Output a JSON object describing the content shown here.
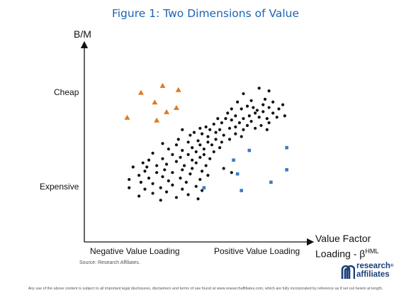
{
  "title": "Figure 1: Two Dimensions of Value",
  "source": "Source: Research Affiliates.",
  "disclaimer": "Any use of the above content is subject to all important legal disclosures, disclaimers and terms of use found at www.researchaffiliates.com, which are fully incorporated by reference as if set out herein at length.",
  "logo": {
    "line1": "research",
    "line2": "affiliates",
    "reg": "®"
  },
  "chart_data": {
    "type": "scatter",
    "title": "Figure 1: Two Dimensions of Value",
    "ylabel": "B/M",
    "xlabel": "Value Factor Loading - β",
    "xlabel_sup": "HML",
    "y_tick_labels": [
      "Cheap",
      "Expensive"
    ],
    "x_tick_labels": [
      "Negative Value Loading",
      "Positive Value Loading"
    ],
    "xlim": [
      0,
      100
    ],
    "ylim": [
      0,
      100
    ],
    "grid": false,
    "legend": "none",
    "colors": {
      "dots": "#111111",
      "triangles": "#e07a1f",
      "squares": "#3a7cc4",
      "title": "#1b63b7",
      "logo": "#1b3f78"
    },
    "series": [
      {
        "marker": "circle",
        "points": [
          [
            74,
            85
          ],
          [
            79,
            83
          ],
          [
            66,
            81
          ],
          [
            77,
            77
          ],
          [
            70,
            76
          ],
          [
            81,
            75
          ],
          [
            63,
            75
          ],
          [
            76,
            73
          ],
          [
            68,
            72
          ],
          [
            71,
            71
          ],
          [
            79,
            71
          ],
          [
            84,
            70
          ],
          [
            86,
            73
          ],
          [
            73,
            69
          ],
          [
            65,
            70
          ],
          [
            60,
            70
          ],
          [
            76,
            68
          ],
          [
            81,
            67
          ],
          [
            72,
            67
          ],
          [
            69,
            65
          ],
          [
            83,
            64
          ],
          [
            58,
            67
          ],
          [
            62,
            65
          ],
          [
            74,
            64
          ],
          [
            78,
            63
          ],
          [
            87,
            65
          ],
          [
            66,
            63
          ],
          [
            57,
            63
          ],
          [
            53,
            63
          ],
          [
            60,
            62
          ],
          [
            70,
            61
          ],
          [
            79,
            60
          ],
          [
            64,
            60
          ],
          [
            55,
            60
          ],
          [
            75,
            58
          ],
          [
            68,
            58
          ],
          [
            51,
            59
          ],
          [
            62,
            57
          ],
          [
            72,
            56
          ],
          [
            47,
            57
          ],
          [
            59,
            56
          ],
          [
            66,
            55
          ],
          [
            54,
            55
          ],
          [
            44,
            56
          ],
          [
            49,
            55
          ],
          [
            78,
            55
          ],
          [
            41,
            53
          ],
          [
            52,
            53
          ],
          [
            62,
            52
          ],
          [
            35,
            55
          ],
          [
            45,
            52
          ],
          [
            56,
            51
          ],
          [
            65,
            50
          ],
          [
            48,
            50
          ],
          [
            39,
            51
          ],
          [
            52,
            48
          ],
          [
            59,
            48
          ],
          [
            43,
            47
          ],
          [
            33,
            48
          ],
          [
            48,
            46
          ],
          [
            38,
            46
          ],
          [
            55,
            46
          ],
          [
            25,
            45
          ],
          [
            44,
            44
          ],
          [
            32,
            44
          ],
          [
            50,
            44
          ],
          [
            40,
            42
          ],
          [
            54,
            42
          ],
          [
            46,
            41
          ],
          [
            28,
            41
          ],
          [
            35,
            40
          ],
          [
            42,
            39
          ],
          [
            51,
            39
          ],
          [
            20,
            38
          ],
          [
            38,
            37
          ],
          [
            46,
            37
          ],
          [
            30,
            37
          ],
          [
            34,
            35
          ],
          [
            44,
            35
          ],
          [
            25,
            34
          ],
          [
            49,
            34
          ],
          [
            40,
            33
          ],
          [
            18,
            33
          ],
          [
            32,
            32
          ],
          [
            42,
            31
          ],
          [
            15,
            31
          ],
          [
            27,
            30
          ],
          [
            36,
            29
          ],
          [
            47,
            29
          ],
          [
            22,
            29
          ],
          [
            17,
            28
          ],
          [
            40,
            27
          ],
          [
            10,
            28
          ],
          [
            26,
            26
          ],
          [
            35,
            26
          ],
          [
            45,
            25
          ],
          [
            16,
            25
          ],
          [
            30,
            24
          ],
          [
            22,
            24
          ],
          [
            39,
            23
          ],
          [
            13,
            22
          ],
          [
            48,
            22
          ],
          [
            25,
            21
          ],
          [
            34,
            20
          ],
          [
            18,
            20
          ],
          [
            44,
            19
          ],
          [
            8,
            19
          ],
          [
            28,
            18
          ],
          [
            37,
            17
          ],
          [
            14,
            17
          ],
          [
            20,
            16
          ],
          [
            30,
            15
          ],
          [
            42,
            14
          ],
          [
            8,
            13
          ],
          [
            24,
            13
          ],
          [
            35,
            12
          ],
          [
            16,
            12
          ],
          [
            45,
            11
          ],
          [
            27,
            10
          ],
          [
            38,
            8
          ],
          [
            20,
            9
          ],
          [
            13,
            7
          ],
          [
            32,
            6
          ],
          [
            43,
            5
          ],
          [
            24,
            4
          ],
          [
            56,
            27
          ],
          [
            60,
            24
          ]
        ]
      },
      {
        "marker": "triangle",
        "points": [
          [
            25,
            87
          ],
          [
            33,
            84
          ],
          [
            14,
            82
          ],
          [
            21,
            75
          ],
          [
            32,
            71
          ],
          [
            27,
            68
          ],
          [
            7,
            64
          ],
          [
            22,
            62
          ]
        ]
      },
      {
        "marker": "square",
        "points": [
          [
            69,
            40
          ],
          [
            88,
            42
          ],
          [
            61,
            33
          ],
          [
            88,
            26
          ],
          [
            63,
            23
          ],
          [
            80,
            17
          ],
          [
            46,
            13
          ],
          [
            65,
            11
          ]
        ]
      }
    ]
  }
}
